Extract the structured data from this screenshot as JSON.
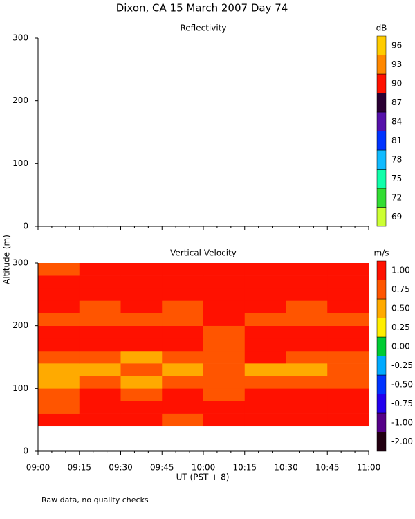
{
  "title": "Dixon, CA 15 March 2007  Day  74",
  "ylabel": "Altitude (m)",
  "xlabel": "UT  (PST + 8)",
  "note": "Raw data, no quality checks",
  "chart_data": [
    {
      "type": "heatmap",
      "title": "Reflectivity",
      "xlim": [
        9,
        11
      ],
      "xticks": [
        9,
        9.25,
        9.5,
        9.75,
        10,
        10.25,
        10.5,
        10.75,
        11
      ],
      "ylim": [
        0,
        300
      ],
      "yticks": [
        0,
        100,
        200,
        300
      ],
      "colorbar": {
        "unit": "dB",
        "ticks": [
          69,
          72,
          75,
          78,
          81,
          84,
          87,
          90,
          93,
          96
        ],
        "colors": [
          "#ccff33",
          "#33dd33",
          "#11ffaa",
          "#11bbff",
          "#0033ff",
          "#5511aa",
          "#2a0033",
          "#ff1100",
          "#ff8800",
          "#ffcc00"
        ]
      }
    },
    {
      "type": "heatmap",
      "title": "Vertical Velocity",
      "xlim": [
        9,
        11
      ],
      "xticks": [
        {
          "value": 9,
          "label": "09:00"
        },
        {
          "value": 9.25,
          "label": "09:15"
        },
        {
          "value": 9.5,
          "label": "09:30"
        },
        {
          "value": 9.75,
          "label": "09:45"
        },
        {
          "value": 10,
          "label": "10:00"
        },
        {
          "value": 10.25,
          "label": "10:15"
        },
        {
          "value": 10.5,
          "label": "10:30"
        },
        {
          "value": 10.75,
          "label": "10:45"
        },
        {
          "value": 11,
          "label": "11:00"
        }
      ],
      "ylim": [
        0,
        300
      ],
      "yticks": [
        0,
        100,
        200,
        300
      ],
      "x_bins": [
        9,
        9.25,
        9.5,
        9.75,
        10,
        10.25,
        10.5,
        10.75,
        11
      ],
      "y_bins": [
        40,
        60,
        80,
        100,
        120,
        140,
        160,
        180,
        200,
        220,
        240,
        260,
        280,
        300
      ],
      "z": [
        [
          1.0,
          0.9,
          1.1,
          0.8,
          1.0,
          1.1,
          0.9,
          1.0
        ],
        [
          0.8,
          1.0,
          0.9,
          1.0,
          0.9,
          1.0,
          1.1,
          0.9
        ],
        [
          0.7,
          0.9,
          0.8,
          0.9,
          0.8,
          1.0,
          0.9,
          1.0
        ],
        [
          0.6,
          0.7,
          0.6,
          0.8,
          0.7,
          0.7,
          0.8,
          0.7
        ],
        [
          0.5,
          0.6,
          0.7,
          0.6,
          0.7,
          0.6,
          0.6,
          0.7
        ],
        [
          0.7,
          0.8,
          0.6,
          0.8,
          0.8,
          0.9,
          0.7,
          0.8
        ],
        [
          1.0,
          0.9,
          1.0,
          0.9,
          0.8,
          1.1,
          1.0,
          0.9
        ],
        [
          1.1,
          1.0,
          0.9,
          1.0,
          0.8,
          1.0,
          1.1,
          1.0
        ],
        [
          0.8,
          0.7,
          0.8,
          0.7,
          0.9,
          0.8,
          0.7,
          0.8
        ],
        [
          0.9,
          0.8,
          0.9,
          0.8,
          0.9,
          0.9,
          0.8,
          0.9
        ],
        [
          1.0,
          1.1,
          1.0,
          0.9,
          1.0,
          1.0,
          0.9,
          1.0
        ],
        [
          0.9,
          1.0,
          1.1,
          1.0,
          1.0,
          0.9,
          1.0,
          1.1
        ],
        [
          0.8,
          0.9,
          1.0,
          1.0,
          0.9,
          1.0,
          0.9,
          1.0
        ]
      ],
      "colorbar": {
        "unit": "m/s",
        "ticks": [
          {
            "value": -2,
            "label": "-2.00"
          },
          {
            "value": -1,
            "label": "-1.00"
          },
          {
            "value": -0.75,
            "label": "-0.75"
          },
          {
            "value": -0.5,
            "label": "-0.50"
          },
          {
            "value": -0.25,
            "label": "-0.25"
          },
          {
            "value": 0,
            "label": "0.00"
          },
          {
            "value": 0.25,
            "label": "0.25"
          },
          {
            "value": 0.5,
            "label": "0.50"
          },
          {
            "value": 0.75,
            "label": "0.75"
          },
          {
            "value": 1,
            "label": "1.00"
          }
        ],
        "colors": [
          "#220011",
          "#550088",
          "#2200ee",
          "#0033ff",
          "#00aaff",
          "#00cc33",
          "#ffee00",
          "#ffaa00",
          "#ff5500",
          "#ff1100"
        ]
      }
    }
  ]
}
